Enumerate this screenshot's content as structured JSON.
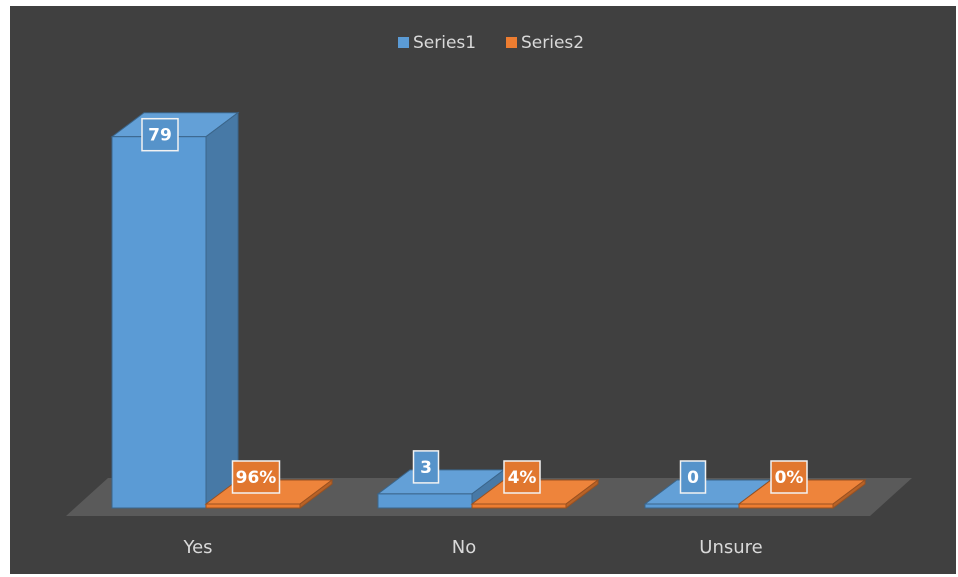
{
  "chart_data": {
    "type": "bar",
    "style": "3d-clustered-column",
    "categories": [
      "Yes",
      "No",
      "Unsure"
    ],
    "series": [
      {
        "name": "Series1",
        "values": [
          79,
          3,
          0
        ],
        "labels": [
          "79",
          "3",
          "0"
        ],
        "color": "#5b9bd5"
      },
      {
        "name": "Series2",
        "values": [
          0.96,
          0.04,
          0
        ],
        "labels": [
          "96%",
          "4%",
          "0%"
        ],
        "color": "#ed7d31"
      }
    ],
    "legend": "top",
    "grid": false,
    "background": "#404040"
  }
}
